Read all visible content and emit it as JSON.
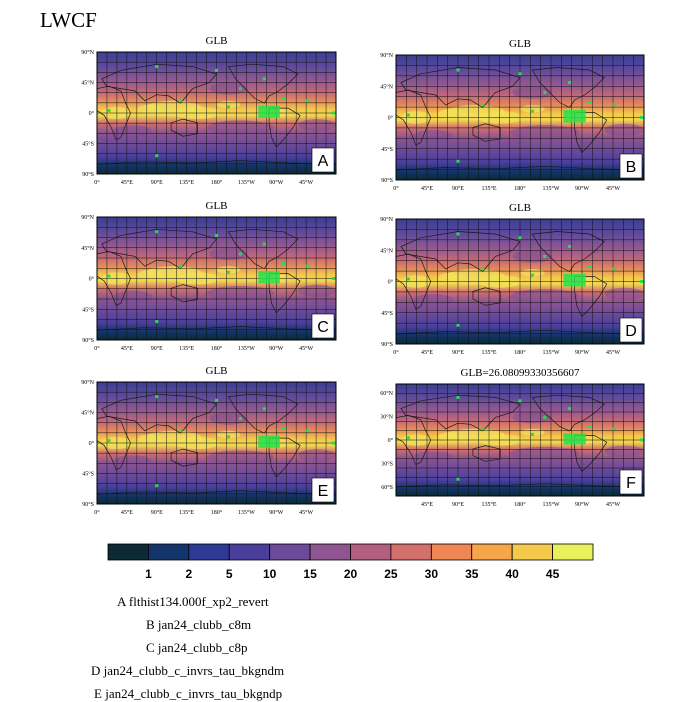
{
  "figure": {
    "title": "LWCF"
  },
  "chart_data": {
    "type": "heatmap",
    "field": "LWCF",
    "panels": [
      {
        "id": "A",
        "title": "GLB",
        "tag": "A",
        "lat_ticks": [
          "90°N",
          "45°N",
          "0°",
          "45°S",
          "90°S"
        ],
        "lon_ticks": [
          "0°",
          "45°E",
          "90°E",
          "135°E",
          "180°",
          "135°W",
          "90°W",
          "45°W"
        ]
      },
      {
        "id": "B",
        "title": "GLB",
        "tag": "B",
        "lat_ticks": [
          "90°N",
          "45°N",
          "0°",
          "45°S",
          "90°S"
        ],
        "lon_ticks": [
          "0°",
          "45°E",
          "90°E",
          "135°E",
          "180°",
          "135°W",
          "90°W",
          "45°W"
        ]
      },
      {
        "id": "C",
        "title": "GLB",
        "tag": "C",
        "lat_ticks": [
          "90°N",
          "45°N",
          "0°",
          "45°S",
          "90°S"
        ],
        "lon_ticks": [
          "0°",
          "45°E",
          "90°E",
          "135°E",
          "180°",
          "135°W",
          "90°W",
          "45°W"
        ]
      },
      {
        "id": "D",
        "title": "GLB",
        "tag": "D",
        "lat_ticks": [
          "90°N",
          "45°N",
          "0°",
          "45°S",
          "90°S"
        ],
        "lon_ticks": [
          "0°",
          "45°E",
          "90°E",
          "135°E",
          "180°",
          "135°W",
          "90°W",
          "45°W"
        ]
      },
      {
        "id": "E",
        "title": "GLB",
        "tag": "E",
        "lat_ticks": [
          "90°N",
          "45°N",
          "0°",
          "45°S",
          "90°S"
        ],
        "lon_ticks": [
          "0°",
          "45°E",
          "90°E",
          "135°E",
          "180°",
          "135°W",
          "90°W",
          "45°W"
        ]
      },
      {
        "id": "F",
        "title": "GLB=26.08099330356607",
        "tag": "F",
        "lat_ticks": [
          "60°N",
          "30°N",
          "0°",
          "30°S",
          "60°S"
        ],
        "lon_ticks": [
          "45°E",
          "90°E",
          "135°E",
          "180°",
          "135°W",
          "90°W",
          "45°W"
        ]
      }
    ],
    "colorbar": {
      "levels": [
        "1",
        "2",
        "5",
        "10",
        "15",
        "20",
        "25",
        "30",
        "35",
        "40",
        "45"
      ],
      "colors": [
        "#0b2a33",
        "#13356b",
        "#2e3a95",
        "#4a3f9c",
        "#6b4a9a",
        "#8f5590",
        "#b35f80",
        "#d4706c",
        "#ee8655",
        "#f6a548",
        "#f4c94a",
        "#e8f05a"
      ]
    }
  },
  "legend": [
    {
      "tag": "A",
      "name": "flthist134.000f_xp2_revert"
    },
    {
      "tag": "B",
      "name": "jan24_clubb_c8m"
    },
    {
      "tag": "C",
      "name": "jan24_clubb_c8p"
    },
    {
      "tag": "D",
      "name": "jan24_clubb_c_invrs_tau_bkgndm"
    },
    {
      "tag": "E",
      "name": "jan24_clubb_c_invrs_tau_bkgndp"
    }
  ]
}
